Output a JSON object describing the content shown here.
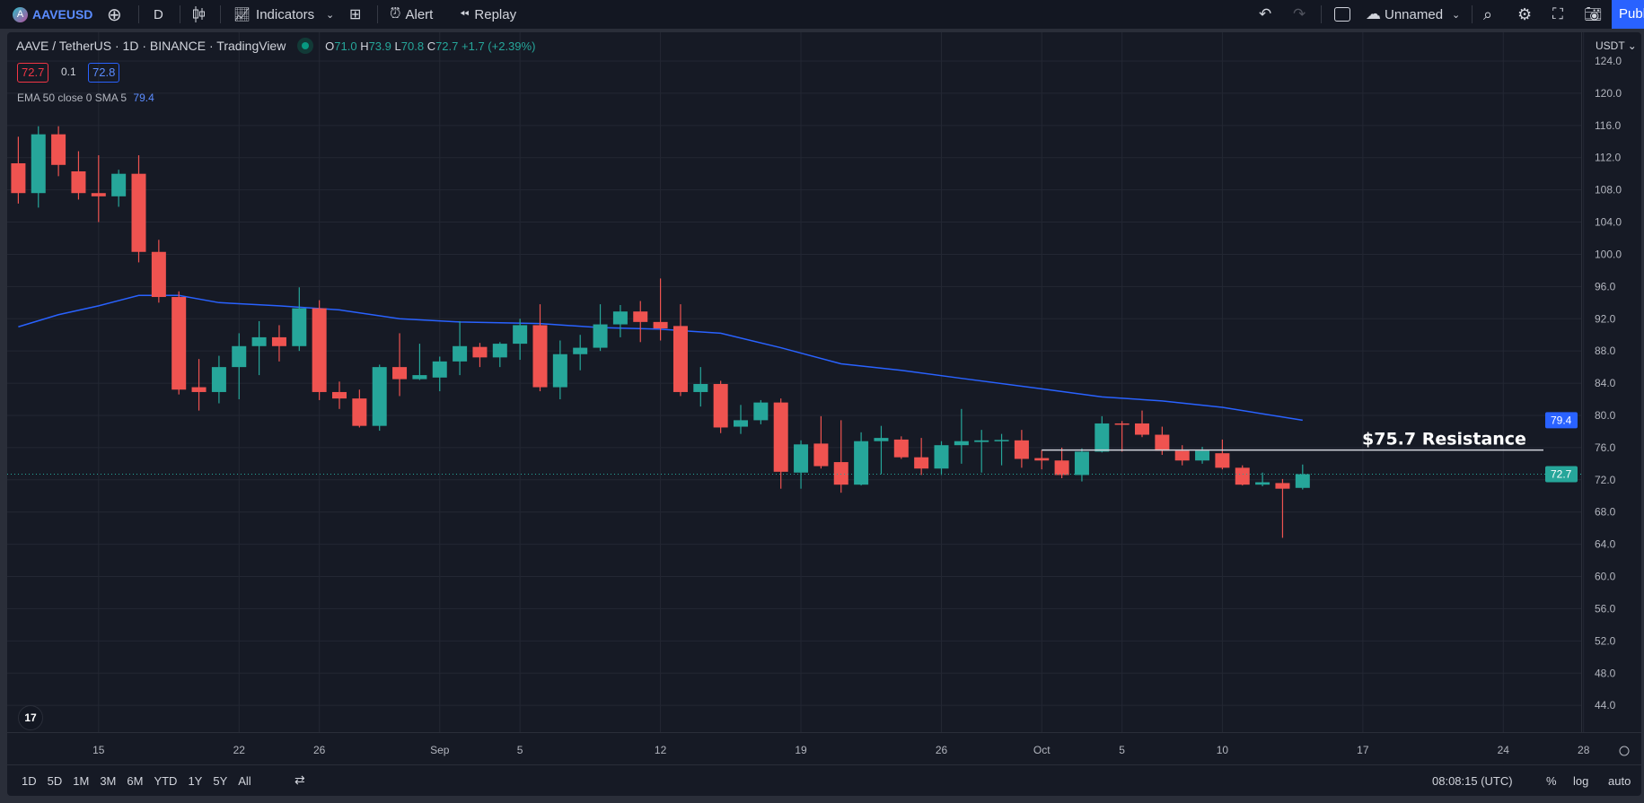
{
  "toolbar": {
    "symbol": "AAVEUSD",
    "interval": "D",
    "indicators": "Indicators",
    "alert": "Alert",
    "replay": "Replay",
    "layout_name": "Unnamed",
    "publish": "Publish"
  },
  "legend": {
    "title": "AAVE / TetherUS · 1D · BINANCE · TradingView",
    "o_label": "O",
    "o": "71.0",
    "h_label": "H",
    "h": "73.9",
    "l_label": "L",
    "l": "70.8",
    "c_label": "C",
    "c": "72.7",
    "change": "+1.7 (+2.39%)",
    "bid": "72.7",
    "spread": "0.1",
    "ask": "72.8",
    "ema_label": "EMA 50 close 0 SMA 5",
    "ema_value": "79.4"
  },
  "bottom": {
    "ranges": [
      "1D",
      "5D",
      "1M",
      "3M",
      "6M",
      "YTD",
      "1Y",
      "5Y",
      "All"
    ],
    "time": "08:08:15 (UTC)",
    "pct": "%",
    "log": "log",
    "auto": "auto"
  },
  "colors": {
    "up": "#26a69a",
    "down": "#ef5350",
    "ema": "#2962ff",
    "background": "#161a25",
    "accent": "#2962ff"
  },
  "chart_data": {
    "type": "candlestick",
    "currency": "USDT",
    "ylim": [
      44,
      124
    ],
    "y_ticks": [
      "124.0",
      "120.0",
      "116.0",
      "112.0",
      "108.0",
      "104.0",
      "100.0",
      "96.0",
      "92.0",
      "88.0",
      "84.0",
      "80.0",
      "76.0",
      "72.0",
      "68.0",
      "64.0",
      "60.0",
      "56.0",
      "52.0",
      "48.0",
      "44.0"
    ],
    "x_ticks": [
      {
        "label": "15",
        "date": "08-15"
      },
      {
        "label": "22",
        "date": "08-22"
      },
      {
        "label": "26",
        "date": "08-26"
      },
      {
        "label": "Sep",
        "date": "09-01"
      },
      {
        "label": "5",
        "date": "09-05"
      },
      {
        "label": "12",
        "date": "09-12"
      },
      {
        "label": "19",
        "date": "09-19"
      },
      {
        "label": "26",
        "date": "09-26"
      },
      {
        "label": "Oct",
        "date": "10-01"
      },
      {
        "label": "5",
        "date": "10-05"
      },
      {
        "label": "10",
        "date": "10-10"
      },
      {
        "label": "17",
        "date": "10-17"
      },
      {
        "label": "24",
        "date": "10-24"
      },
      {
        "label": "28",
        "date": "10-28"
      }
    ],
    "grid": true,
    "ohlc": [
      [
        "08-11",
        111.3,
        114.6,
        106.3,
        107.6
      ],
      [
        "08-12",
        107.6,
        115.9,
        105.8,
        114.9
      ],
      [
        "08-13",
        114.9,
        115.9,
        109.7,
        111.1
      ],
      [
        "08-14",
        110.3,
        112.8,
        106.8,
        107.6
      ],
      [
        "08-15",
        107.6,
        112.3,
        104.0,
        107.2
      ],
      [
        "08-16",
        107.2,
        110.5,
        105.9,
        110.0
      ],
      [
        "08-17",
        110.0,
        112.3,
        99.0,
        100.3
      ],
      [
        "08-18",
        100.3,
        101.8,
        94.0,
        94.7
      ],
      [
        "08-19",
        94.7,
        95.4,
        82.6,
        83.2
      ],
      [
        "08-20",
        83.5,
        87.0,
        80.6,
        82.9
      ],
      [
        "08-21",
        82.9,
        87.4,
        81.5,
        86.0
      ],
      [
        "08-22",
        86.0,
        90.2,
        82.0,
        88.6
      ],
      [
        "08-23",
        88.6,
        91.7,
        85.0,
        89.7
      ],
      [
        "08-24",
        89.7,
        91.2,
        86.7,
        88.6
      ],
      [
        "08-25",
        88.6,
        95.9,
        88.0,
        93.3
      ],
      [
        "08-26",
        93.3,
        94.3,
        81.9,
        82.9
      ],
      [
        "08-27",
        82.9,
        84.2,
        80.8,
        82.1
      ],
      [
        "08-28",
        82.1,
        83.2,
        78.5,
        78.7
      ],
      [
        "08-29",
        78.7,
        86.3,
        78.1,
        86.0
      ],
      [
        "08-30",
        86.0,
        90.2,
        82.4,
        84.5
      ],
      [
        "08-31",
        84.5,
        88.9,
        84.4,
        85.0
      ],
      [
        "09-01",
        84.7,
        87.3,
        83.0,
        86.7
      ],
      [
        "09-02",
        86.7,
        91.7,
        85.0,
        88.6
      ],
      [
        "09-03",
        88.5,
        89.0,
        86.0,
        87.2
      ],
      [
        "09-04",
        87.2,
        89.1,
        86.0,
        88.9
      ],
      [
        "09-05",
        88.9,
        92.0,
        86.9,
        91.2
      ],
      [
        "09-06",
        91.2,
        93.8,
        83.0,
        83.5
      ],
      [
        "09-07",
        83.5,
        89.3,
        82.0,
        87.6
      ],
      [
        "09-08",
        87.6,
        90.0,
        85.6,
        88.4
      ],
      [
        "09-09",
        88.4,
        93.8,
        88.0,
        91.3
      ],
      [
        "09-10",
        91.3,
        93.7,
        89.7,
        92.9
      ],
      [
        "09-11",
        92.9,
        94.2,
        89.1,
        91.6
      ],
      [
        "09-12",
        91.6,
        97.0,
        89.3,
        90.8
      ],
      [
        "09-13",
        91.1,
        93.8,
        82.4,
        82.9
      ],
      [
        "09-14",
        82.9,
        86.0,
        81.1,
        83.9
      ],
      [
        "09-15",
        83.9,
        84.3,
        77.8,
        78.5
      ],
      [
        "09-16",
        78.6,
        81.3,
        77.7,
        79.4
      ],
      [
        "09-17",
        79.4,
        81.9,
        78.9,
        81.6
      ],
      [
        "09-18",
        81.6,
        82.1,
        70.9,
        73.0
      ],
      [
        "09-19",
        72.9,
        76.9,
        70.9,
        76.4
      ],
      [
        "09-20",
        76.5,
        79.9,
        73.4,
        73.7
      ],
      [
        "09-21",
        74.2,
        79.4,
        70.4,
        71.4
      ],
      [
        "09-22",
        71.4,
        77.9,
        71.3,
        76.8
      ],
      [
        "09-23",
        76.8,
        78.7,
        72.7,
        77.2
      ],
      [
        "09-24",
        77.0,
        77.4,
        74.6,
        74.8
      ],
      [
        "09-25",
        74.8,
        77.2,
        72.6,
        73.4
      ],
      [
        "09-26",
        73.4,
        76.8,
        72.6,
        76.3
      ],
      [
        "09-27",
        76.3,
        80.8,
        74.0,
        76.8
      ],
      [
        "09-28",
        76.7,
        78.2,
        72.9,
        76.9
      ],
      [
        "09-29",
        76.9,
        77.7,
        73.8,
        76.95
      ],
      [
        "09-30",
        76.9,
        78.2,
        73.5,
        74.6
      ],
      [
        "10-01",
        74.7,
        75.7,
        73.3,
        74.4
      ],
      [
        "10-02",
        74.4,
        76.0,
        72.2,
        72.6
      ],
      [
        "10-03",
        72.6,
        75.9,
        71.8,
        75.5
      ],
      [
        "10-04",
        75.5,
        79.9,
        75.4,
        79.0
      ],
      [
        "10-05",
        79.0,
        79.3,
        75.5,
        78.9
      ],
      [
        "10-06",
        79.0,
        80.6,
        77.3,
        77.6
      ],
      [
        "10-07",
        77.6,
        78.6,
        75.1,
        75.6
      ],
      [
        "10-08",
        75.6,
        76.3,
        73.8,
        74.4
      ],
      [
        "10-09",
        74.4,
        76.1,
        74.0,
        75.6
      ],
      [
        "10-10",
        75.3,
        77.0,
        73.3,
        73.5
      ],
      [
        "10-11",
        73.5,
        73.8,
        71.3,
        71.4
      ],
      [
        "10-12",
        71.4,
        72.9,
        71.2,
        71.7
      ],
      [
        "10-13",
        71.6,
        72.1,
        64.8,
        70.9
      ],
      [
        "10-14",
        71.0,
        73.9,
        70.8,
        72.7
      ]
    ],
    "ema": [
      [
        "08-11",
        91.0
      ],
      [
        "08-13",
        92.5
      ],
      [
        "08-15",
        93.6
      ],
      [
        "08-17",
        94.9
      ],
      [
        "08-19",
        94.9
      ],
      [
        "08-21",
        94.0
      ],
      [
        "08-24",
        93.6
      ],
      [
        "08-27",
        93.1
      ],
      [
        "08-30",
        92.0
      ],
      [
        "09-02",
        91.6
      ],
      [
        "09-06",
        91.4
      ],
      [
        "09-09",
        90.9
      ],
      [
        "09-12",
        90.7
      ],
      [
        "09-15",
        90.2
      ],
      [
        "09-18",
        88.4
      ],
      [
        "09-21",
        86.4
      ],
      [
        "09-24",
        85.6
      ],
      [
        "09-27",
        84.6
      ],
      [
        "10-01",
        83.3
      ],
      [
        "10-04",
        82.3
      ],
      [
        "10-07",
        81.8
      ],
      [
        "10-10",
        81.0
      ],
      [
        "10-14",
        79.4
      ]
    ],
    "last_price": {
      "value": 72.7,
      "label": "72.7"
    },
    "ema_tag": {
      "value": 79.4,
      "label": "79.4"
    },
    "annotation": {
      "text": "$75.7 Resistance",
      "price": 75.7,
      "from": "10-01",
      "to": "10-26"
    }
  }
}
